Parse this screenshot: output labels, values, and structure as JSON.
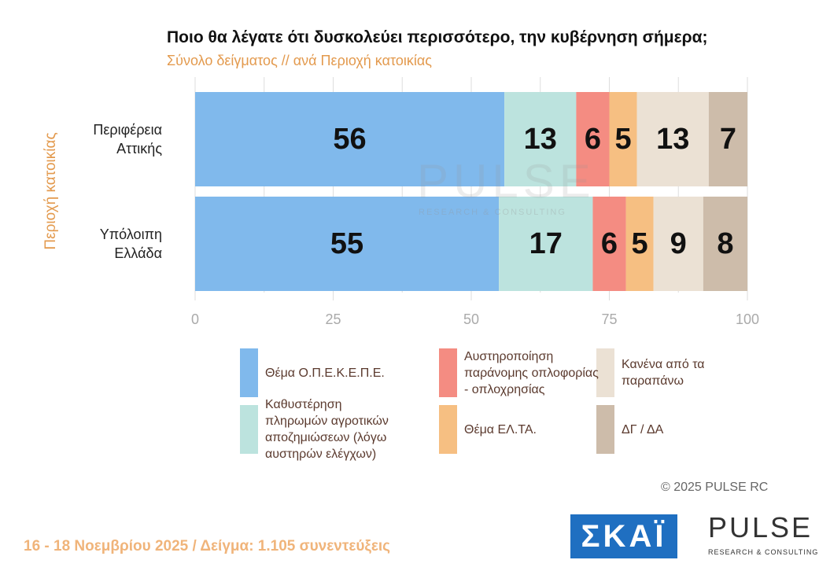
{
  "chart_data": {
    "type": "stacked-barh",
    "title": "Ποιο θα λέγατε ότι δυσκολεύει περισσότερο, την κυβέρνηση σήμερα;",
    "subtitle": "Σύνολο δείγματος // ανά Περιοχή κατοικίας",
    "y_label": "Περιοχή κατοικίας",
    "categories": [
      "Περιφέρεια Αττικής",
      "Υπόλοιπη Ελλάδα"
    ],
    "series": [
      {
        "name": "Θέμα Ο.Π.Ε.Κ.Ε.Π.Ε.",
        "color": "#80b9ec",
        "values": [
          56,
          55
        ]
      },
      {
        "name": "Καθυστέρηση πληρωμών αγροτικών αποζημιώσεων (λόγω αυστηρών ελέγχων)",
        "color": "#bce3de",
        "values": [
          13,
          17
        ]
      },
      {
        "name": "Αυστηροποίηση παράνομης οπλοφορίας - οπλοχρησίας",
        "color": "#f48c82",
        "values": [
          6,
          6
        ]
      },
      {
        "name": "Θέμα ΕΛ.ΤΑ.",
        "color": "#f6bf82",
        "values": [
          5,
          5
        ]
      },
      {
        "name": "Κανένα από τα παραπάνω",
        "color": "#ebe1d4",
        "values": [
          13,
          9
        ]
      },
      {
        "name": "ΔΓ / ΔΑ",
        "color": "#cdbcaa",
        "values": [
          7,
          8
        ]
      }
    ],
    "xlim": [
      0,
      100
    ],
    "xticks": [
      0,
      25,
      50,
      75,
      100
    ],
    "minor_grid": [
      12.5,
      37.5,
      62.5,
      87.5
    ],
    "grid": true
  },
  "footer": {
    "copyright": "©  2025  PULSE RC",
    "note": "16 - 18 Νοεμβρίου 2025  /  Δείγμα:  1.105 συνεντεύξεις",
    "logo_left": "ΣΚΑΪ",
    "logo_right": "PULSE",
    "logo_right_sub": "RESEARCH & CONSULTING"
  },
  "watermark": {
    "text": "PULSE",
    "sub": "RESEARCH & CONSULTING"
  }
}
